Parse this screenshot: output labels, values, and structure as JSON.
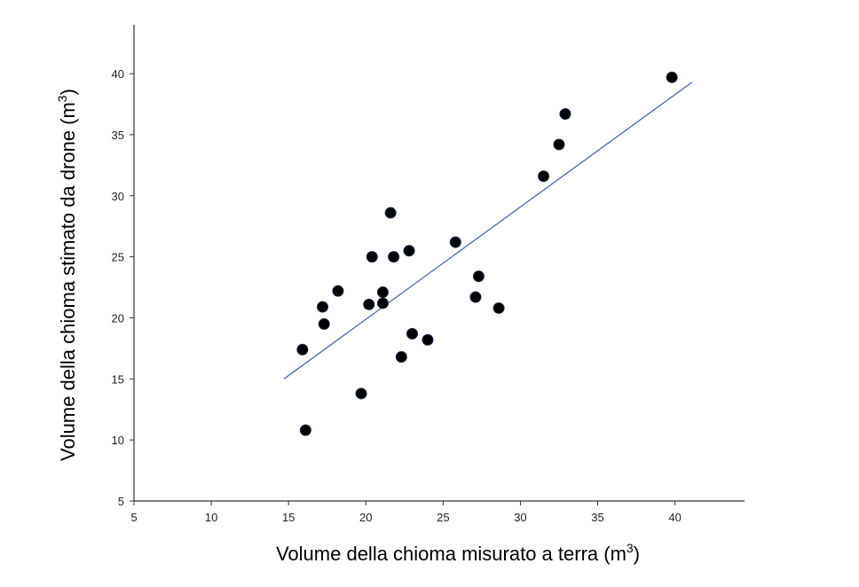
{
  "chart_data": {
    "type": "scatter",
    "title": "",
    "xlabel": {
      "text": "Volume della chioma misurato a terra (m",
      "superscript": "3",
      "suffix": ")"
    },
    "ylabel": {
      "text": "Volume della chioma stimato da drone (m",
      "superscript": "3",
      "suffix": ")"
    },
    "xlim": [
      5,
      44.5
    ],
    "ylim": [
      5,
      44
    ],
    "xticks": [
      "5",
      "10",
      "15",
      "20",
      "25",
      "30",
      "35",
      "40"
    ],
    "yticks": [
      "5",
      "10",
      "15",
      "20",
      "25",
      "30",
      "35",
      "40"
    ],
    "grid": false,
    "legend": "none",
    "colors": {
      "points": "#000000",
      "points_outline": "#1a2a4a",
      "fit_line": "#4a6aaa",
      "axes": "#333333"
    },
    "points": [
      {
        "x": 15.9,
        "y": 17.4
      },
      {
        "x": 16.1,
        "y": 10.8
      },
      {
        "x": 17.2,
        "y": 20.9
      },
      {
        "x": 17.3,
        "y": 19.5
      },
      {
        "x": 18.2,
        "y": 22.2
      },
      {
        "x": 19.7,
        "y": 13.8
      },
      {
        "x": 20.2,
        "y": 21.1
      },
      {
        "x": 20.4,
        "y": 25.0
      },
      {
        "x": 21.1,
        "y": 22.1
      },
      {
        "x": 21.1,
        "y": 21.2
      },
      {
        "x": 21.6,
        "y": 28.6
      },
      {
        "x": 21.8,
        "y": 25.0
      },
      {
        "x": 22.3,
        "y": 16.8
      },
      {
        "x": 22.8,
        "y": 25.5
      },
      {
        "x": 23.0,
        "y": 18.7
      },
      {
        "x": 24.0,
        "y": 18.2
      },
      {
        "x": 25.8,
        "y": 26.2
      },
      {
        "x": 27.1,
        "y": 21.7
      },
      {
        "x": 27.3,
        "y": 23.4
      },
      {
        "x": 28.6,
        "y": 20.8
      },
      {
        "x": 31.5,
        "y": 31.6
      },
      {
        "x": 32.5,
        "y": 34.2
      },
      {
        "x": 32.9,
        "y": 36.7
      },
      {
        "x": 39.8,
        "y": 39.7
      }
    ],
    "fit_line": {
      "x": [
        14.7,
        41.1
      ],
      "y": [
        15.0,
        39.3
      ]
    }
  }
}
